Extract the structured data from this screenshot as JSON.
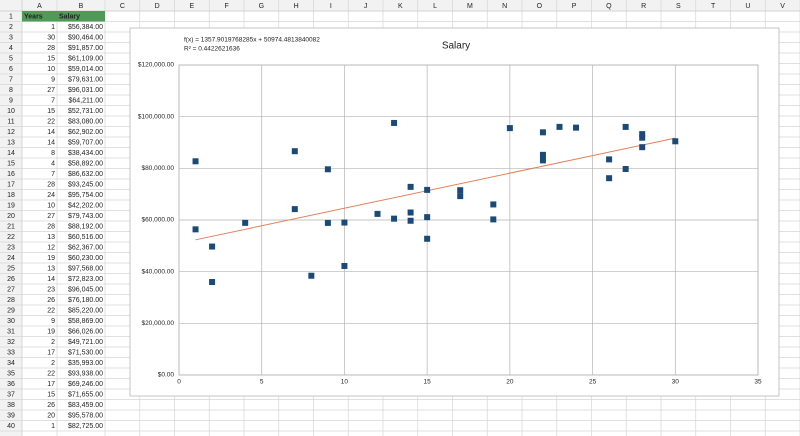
{
  "column_headers": [
    "A",
    "B",
    "C",
    "D",
    "E",
    "F",
    "G",
    "H",
    "I",
    "J",
    "K",
    "L",
    "M",
    "N",
    "O",
    "P",
    "Q",
    "R",
    "S",
    "T",
    "U",
    "V"
  ],
  "row_headers": [
    1,
    2,
    3,
    4,
    5,
    6,
    7,
    8,
    9,
    10,
    11,
    12,
    13,
    14,
    15,
    16,
    17,
    18,
    19,
    20,
    21,
    22,
    23,
    24,
    25,
    26,
    27,
    28,
    29,
    30,
    31,
    32,
    33,
    34,
    35,
    36,
    37,
    38,
    39,
    40
  ],
  "table": {
    "rows": [
      [
        "Years",
        "Salary"
      ],
      [
        1,
        "$56,384.00"
      ],
      [
        30,
        "$90,464.00"
      ],
      [
        28,
        "$91,857.00"
      ],
      [
        15,
        "$61,109.00"
      ],
      [
        10,
        "$59,014.00"
      ],
      [
        9,
        "$79,631.00"
      ],
      [
        27,
        "$96,031.00"
      ],
      [
        7,
        "$64,211.00"
      ],
      [
        15,
        "$52,731.00"
      ],
      [
        22,
        "$83,080.00"
      ],
      [
        14,
        "$62,902.00"
      ],
      [
        14,
        "$59,707.00"
      ],
      [
        8,
        "$38,434.00"
      ],
      [
        4,
        "$58,892.00"
      ],
      [
        7,
        "$86,632.00"
      ],
      [
        28,
        "$93,245.00"
      ],
      [
        24,
        "$95,754.00"
      ],
      [
        10,
        "$42,202.00"
      ],
      [
        27,
        "$79,743.00"
      ],
      [
        28,
        "$88,192.00"
      ],
      [
        13,
        "$60,516.00"
      ],
      [
        12,
        "$62,367.00"
      ],
      [
        19,
        "$60,230.00"
      ],
      [
        13,
        "$97,568.00"
      ],
      [
        14,
        "$72,823.00"
      ],
      [
        23,
        "$96,045.00"
      ],
      [
        26,
        "$76,180.00"
      ],
      [
        22,
        "$85,220.00"
      ],
      [
        9,
        "$58,869.00"
      ],
      [
        19,
        "$66,026.00"
      ],
      [
        2,
        "$49,721.00"
      ],
      [
        17,
        "$71,530.00"
      ],
      [
        2,
        "$35,993.00"
      ],
      [
        22,
        "$93,938.00"
      ],
      [
        17,
        "$69,246.00"
      ],
      [
        15,
        "$71,655.00"
      ],
      [
        26,
        "$83,459.00"
      ],
      [
        20,
        "$95,578.00"
      ],
      [
        1,
        "$82,725.00"
      ]
    ]
  },
  "chart_data": {
    "type": "scatter",
    "title": "Salary",
    "equation": "f(x) = 1357.9019768285x + 50974.4813840082",
    "r_squared": "R² = 0.4422621636",
    "trendline": {
      "slope": 1357.9019768285,
      "intercept": 50974.4813840082,
      "color": "#e0805a"
    },
    "x": [
      1,
      30,
      28,
      15,
      10,
      9,
      27,
      7,
      15,
      22,
      14,
      14,
      8,
      4,
      7,
      28,
      24,
      10,
      27,
      28,
      13,
      12,
      19,
      13,
      14,
      23,
      26,
      22,
      9,
      19,
      2,
      17,
      2,
      22,
      17,
      15,
      26,
      20,
      1
    ],
    "values": [
      56384,
      90464,
      91857,
      61109,
      59014,
      79631,
      96031,
      64211,
      52731,
      83080,
      62902,
      59707,
      38434,
      58892,
      86632,
      93245,
      95754,
      42202,
      79743,
      88192,
      60516,
      62367,
      60230,
      97568,
      72823,
      96045,
      76180,
      85220,
      58869,
      66026,
      49721,
      71530,
      35993,
      93938,
      69246,
      71655,
      83459,
      95578,
      82725
    ],
    "color": "#1b4a78",
    "xlim": [
      0,
      35
    ],
    "xticks": [
      0,
      5,
      10,
      15,
      20,
      25,
      30,
      35
    ],
    "ylim": [
      0,
      120000
    ],
    "yticks": [
      {
        "value": 0,
        "label": "$0.00"
      },
      {
        "value": 20000,
        "label": "$20,000.00"
      },
      {
        "value": 40000,
        "label": "$40,000.00"
      },
      {
        "value": 60000,
        "label": "$60,000.00"
      },
      {
        "value": 80000,
        "label": "$80,000.00"
      },
      {
        "value": 100000,
        "label": "$100,000.00"
      },
      {
        "value": 120000,
        "label": "$120,000.00"
      }
    ],
    "grid": true
  }
}
